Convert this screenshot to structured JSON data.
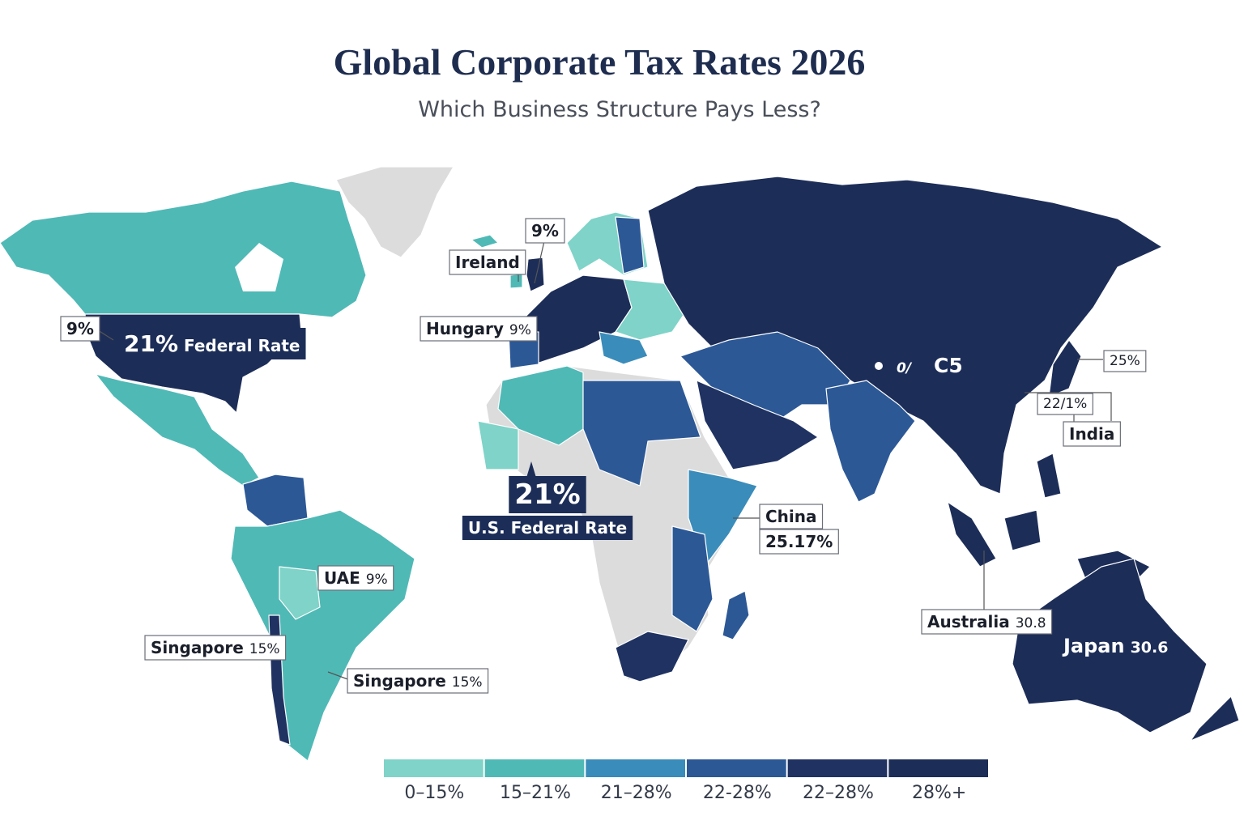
{
  "title": "Global Corporate Tax Rates 2026",
  "subtitle": "Which Business Structure Pays Less?",
  "callouts": [
    {
      "text": "9%"
    },
    {
      "text": "Ireland"
    },
    {
      "text": "Hungary",
      "value": "9%"
    },
    {
      "text": "9%"
    },
    {
      "text": "21%",
      "value": "Federal Rate"
    },
    {
      "text": "21%"
    },
    {
      "text": "U.S. Federal Rate"
    },
    {
      "text": "0/",
      "value": "C5"
    },
    {
      "text": "25%"
    },
    {
      "text": "22/1%"
    },
    {
      "text": "India"
    },
    {
      "text": "China"
    },
    {
      "text": "25.17%"
    },
    {
      "text": "UAE",
      "value": "9%"
    },
    {
      "text": "Singapore",
      "value": "15%"
    },
    {
      "text": "Singapore",
      "value": "15%"
    },
    {
      "text": "Australia",
      "value": "30.8"
    },
    {
      "text": "Japan",
      "value": "30.6"
    }
  ],
  "legend": [
    {
      "label": "0–15%",
      "color": "#7fd3c8"
    },
    {
      "label": "15–21%",
      "color": "#4fb9b6"
    },
    {
      "label": "21–28%",
      "color": "#3a8cba"
    },
    {
      "label": "22-28%",
      "color": "#2c5896"
    },
    {
      "label": "22–28%",
      "color": "#1f3262"
    },
    {
      "label": "28%+",
      "color": "#1c2d58"
    }
  ]
}
